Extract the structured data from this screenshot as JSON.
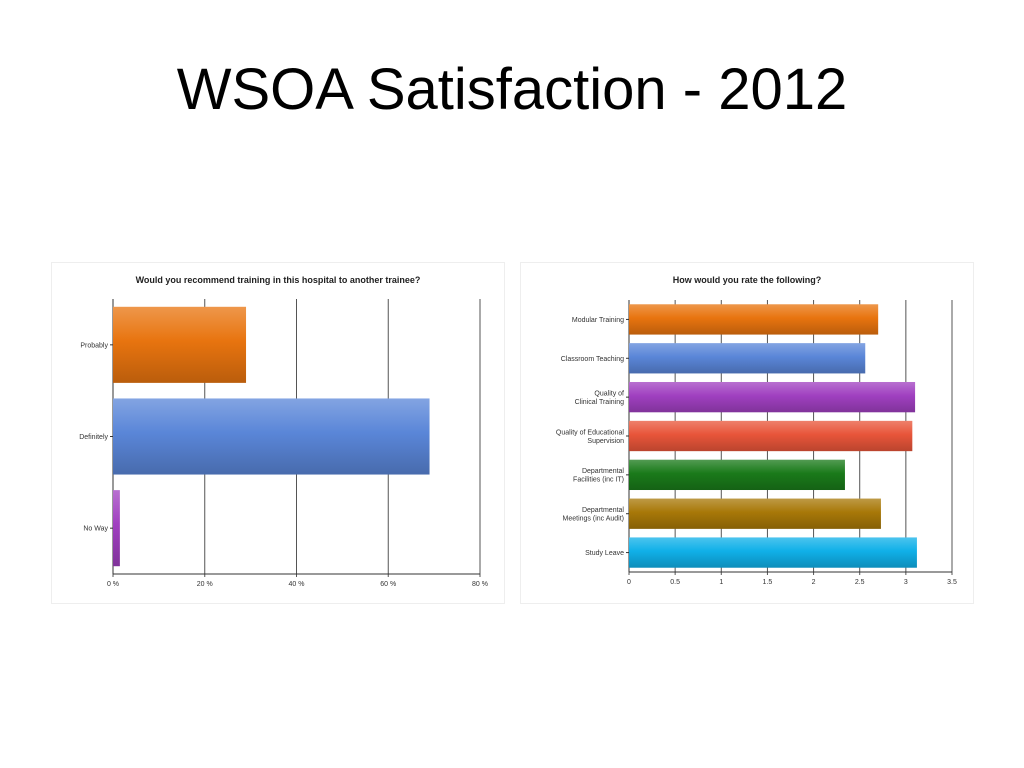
{
  "slide": {
    "title": "WSOA Satisfaction - 2012"
  },
  "chart_data": [
    {
      "type": "bar",
      "orientation": "horizontal",
      "title": "Would you recommend training in this hospital to another trainee?",
      "categories": [
        "Probably",
        "Definitely",
        "No Way"
      ],
      "values": [
        29,
        69,
        1.5
      ],
      "colors": [
        "#e8740f",
        "#5a86d8",
        "#a040c0"
      ],
      "xlim": [
        0,
        80
      ],
      "xticks": [
        0,
        20,
        40,
        60,
        80
      ],
      "xtick_labels": [
        "0 %",
        "20 %",
        "40 %",
        "60 %",
        "80 %"
      ],
      "xlabel": "",
      "ylabel": "",
      "grid": true
    },
    {
      "type": "bar",
      "orientation": "horizontal",
      "title": "How would you rate the following?",
      "categories": [
        "Modular Training",
        "Classroom Teaching",
        "Quality of\nClinical Training",
        "Quality of Educational\nSupervision",
        "Departmental\nFacilities (inc IT)",
        "Departmental\nMeetings (inc Audit)",
        "Study Leave"
      ],
      "values": [
        2.7,
        2.56,
        3.1,
        3.07,
        2.34,
        2.73,
        3.12
      ],
      "colors": [
        "#e8740f",
        "#5a86d8",
        "#a040c0",
        "#e8553a",
        "#1a7a1a",
        "#a87808",
        "#10b0e8"
      ],
      "xlim": [
        0,
        3.5
      ],
      "xticks": [
        0,
        0.5,
        1,
        1.5,
        2,
        2.5,
        3,
        3.5
      ],
      "xtick_labels": [
        "0",
        "0.5",
        "1",
        "1.5",
        "2",
        "2.5",
        "3",
        "3.5"
      ],
      "xlabel": "",
      "ylabel": "",
      "grid": true
    }
  ]
}
